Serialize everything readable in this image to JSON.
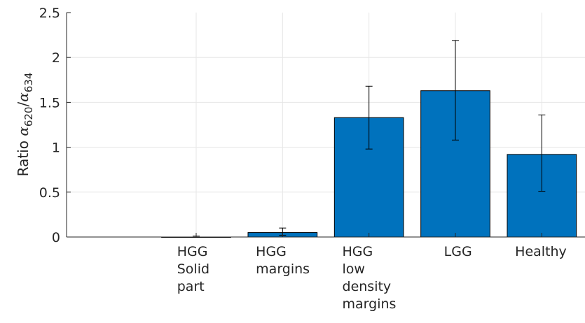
{
  "chart_data": {
    "type": "bar",
    "categories": [
      [
        "HGG",
        "Solid",
        "part"
      ],
      [
        "HGG",
        "margins"
      ],
      [
        "HGG",
        "low",
        "density",
        "margins"
      ],
      [
        "LGG"
      ],
      [
        "Healthy"
      ]
    ],
    "values": [
      0.0,
      0.05,
      1.33,
      1.63,
      0.92
    ],
    "error_low": [
      0.0,
      0.02,
      0.98,
      1.08,
      0.51
    ],
    "error_high": [
      0.01,
      0.1,
      1.68,
      2.19,
      1.36
    ],
    "xlim": [
      -0.5,
      5.5
    ],
    "ylim": [
      0,
      2.5
    ],
    "yticks": [
      "0",
      "0.5",
      "1",
      "1.5",
      "2",
      "2.5"
    ],
    "ytick_values": [
      0,
      0.5,
      1,
      1.5,
      2,
      2.5
    ],
    "ylabel": {
      "prefix": "Ratio ",
      "num_sym": "α",
      "num_sub": "620",
      "slash": "/",
      "den_sym": "α",
      "den_sub": "634"
    },
    "grid": true,
    "bar_color": "#0072bd",
    "edge_color": "#000000"
  }
}
